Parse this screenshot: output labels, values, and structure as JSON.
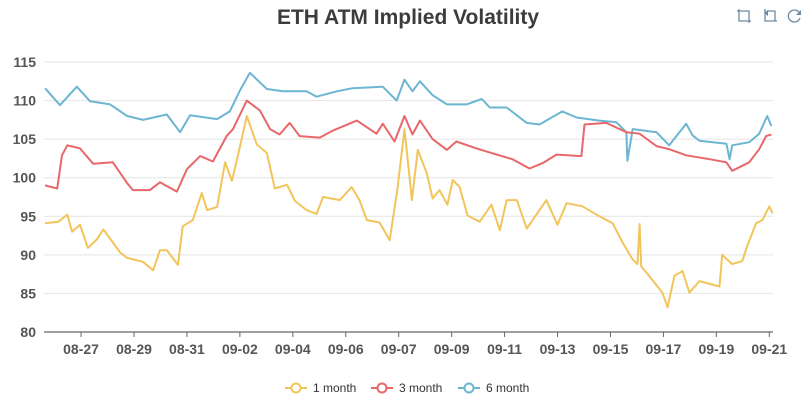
{
  "chart_data": {
    "type": "line",
    "title": "ETH ATM Implied Volatility",
    "xlabel": "",
    "ylabel": "",
    "x_categories": [
      "08-27",
      "08-29",
      "08-31",
      "09-02",
      "09-04",
      "09-06",
      "09-07",
      "09-09",
      "09-11",
      "09-13",
      "09-15",
      "09-17",
      "09-19",
      "09-21"
    ],
    "x_note": "x values are positions in tick units (0 = 08-27 tick, 13 = 09-21 tick)",
    "xlim": [
      -0.7,
      13.07
    ],
    "ylim": [
      80,
      115
    ],
    "yticks": [
      "80",
      "85",
      "90",
      "95",
      "100",
      "105",
      "110",
      "115"
    ],
    "grid": true,
    "legend_position": "bottom",
    "series": [
      {
        "name": "1 month",
        "color": "#f2c55c",
        "points": [
          [
            -0.68,
            94.1
          ],
          [
            -0.43,
            94.3
          ],
          [
            -0.26,
            95.2
          ],
          [
            -0.17,
            93.0
          ],
          [
            -0.02,
            93.9
          ],
          [
            0.13,
            90.9
          ],
          [
            0.3,
            92.0
          ],
          [
            0.42,
            93.3
          ],
          [
            0.74,
            90.3
          ],
          [
            0.87,
            89.6
          ],
          [
            1.17,
            89.1
          ],
          [
            1.36,
            88.0
          ],
          [
            1.49,
            90.6
          ],
          [
            1.62,
            90.6
          ],
          [
            1.83,
            88.7
          ],
          [
            1.92,
            93.7
          ],
          [
            2.11,
            94.5
          ],
          [
            2.28,
            98.0
          ],
          [
            2.38,
            95.8
          ],
          [
            2.57,
            96.2
          ],
          [
            2.72,
            102.0
          ],
          [
            2.85,
            99.6
          ],
          [
            2.96,
            102.8
          ],
          [
            3.13,
            108.0
          ],
          [
            3.32,
            104.3
          ],
          [
            3.51,
            103.2
          ],
          [
            3.66,
            98.6
          ],
          [
            3.89,
            99.1
          ],
          [
            4.04,
            97.0
          ],
          [
            4.26,
            95.8
          ],
          [
            4.45,
            95.3
          ],
          [
            4.57,
            97.5
          ],
          [
            4.89,
            97.1
          ],
          [
            5.11,
            98.8
          ],
          [
            5.26,
            97.1
          ],
          [
            5.4,
            94.5
          ],
          [
            5.64,
            94.2
          ],
          [
            5.83,
            91.9
          ],
          [
            5.98,
            98.7
          ],
          [
            6.11,
            106.3
          ],
          [
            6.25,
            97.1
          ],
          [
            6.36,
            103.6
          ],
          [
            6.53,
            100.6
          ],
          [
            6.64,
            97.3
          ],
          [
            6.77,
            98.4
          ],
          [
            6.92,
            96.5
          ],
          [
            7.02,
            99.7
          ],
          [
            7.15,
            98.8
          ],
          [
            7.3,
            95.1
          ],
          [
            7.53,
            94.3
          ],
          [
            7.75,
            96.5
          ],
          [
            7.91,
            93.2
          ],
          [
            8.04,
            97.1
          ],
          [
            8.23,
            97.1
          ],
          [
            8.42,
            93.4
          ],
          [
            8.79,
            97.1
          ],
          [
            9.0,
            93.9
          ],
          [
            9.17,
            96.7
          ],
          [
            9.47,
            96.3
          ],
          [
            9.79,
            95.0
          ],
          [
            10.04,
            94.1
          ],
          [
            10.23,
            91.6
          ],
          [
            10.42,
            89.4
          ],
          [
            10.51,
            88.8
          ],
          [
            10.55,
            94.0
          ],
          [
            10.58,
            88.5
          ],
          [
            10.68,
            87.7
          ],
          [
            10.98,
            85.1
          ],
          [
            11.08,
            83.2
          ],
          [
            11.21,
            87.3
          ],
          [
            11.36,
            87.9
          ],
          [
            11.49,
            85.1
          ],
          [
            11.68,
            86.6
          ],
          [
            12.06,
            85.9
          ],
          [
            12.11,
            90.0
          ],
          [
            12.3,
            88.8
          ],
          [
            12.49,
            89.2
          ],
          [
            12.58,
            91.1
          ],
          [
            12.75,
            94.1
          ],
          [
            12.87,
            94.5
          ],
          [
            13.0,
            96.3
          ],
          [
            13.06,
            95.4
          ]
        ]
      },
      {
        "name": "3 month",
        "color": "#e8676a",
        "points": [
          [
            -0.68,
            99.0
          ],
          [
            -0.45,
            98.6
          ],
          [
            -0.36,
            102.9
          ],
          [
            -0.26,
            104.2
          ],
          [
            -0.02,
            103.8
          ],
          [
            0.23,
            101.8
          ],
          [
            0.6,
            102.0
          ],
          [
            0.87,
            99.3
          ],
          [
            0.98,
            98.4
          ],
          [
            1.3,
            98.4
          ],
          [
            1.49,
            99.4
          ],
          [
            1.81,
            98.2
          ],
          [
            2.0,
            101.1
          ],
          [
            2.25,
            102.8
          ],
          [
            2.49,
            102.1
          ],
          [
            2.75,
            105.4
          ],
          [
            2.87,
            106.3
          ],
          [
            3.13,
            110.0
          ],
          [
            3.38,
            108.7
          ],
          [
            3.57,
            106.3
          ],
          [
            3.75,
            105.6
          ],
          [
            3.94,
            107.1
          ],
          [
            4.13,
            105.4
          ],
          [
            4.51,
            105.2
          ],
          [
            4.75,
            106.1
          ],
          [
            5.21,
            107.4
          ],
          [
            5.58,
            105.7
          ],
          [
            5.7,
            107.0
          ],
          [
            5.92,
            104.7
          ],
          [
            6.11,
            108.0
          ],
          [
            6.26,
            105.6
          ],
          [
            6.4,
            107.4
          ],
          [
            6.64,
            105.0
          ],
          [
            6.91,
            103.6
          ],
          [
            7.09,
            104.7
          ],
          [
            7.47,
            103.8
          ],
          [
            7.85,
            103.0
          ],
          [
            8.15,
            102.4
          ],
          [
            8.47,
            101.2
          ],
          [
            8.72,
            101.9
          ],
          [
            8.98,
            103.0
          ],
          [
            9.45,
            102.8
          ],
          [
            9.51,
            106.9
          ],
          [
            9.92,
            107.1
          ],
          [
            10.3,
            105.9
          ],
          [
            10.55,
            105.7
          ],
          [
            10.87,
            104.1
          ],
          [
            11.11,
            103.7
          ],
          [
            11.43,
            102.9
          ],
          [
            11.87,
            102.4
          ],
          [
            12.19,
            102.0
          ],
          [
            12.3,
            100.9
          ],
          [
            12.62,
            102.0
          ],
          [
            12.81,
            103.7
          ],
          [
            12.94,
            105.4
          ],
          [
            13.04,
            105.6
          ]
        ]
      },
      {
        "name": "6 month",
        "color": "#6cb6d2",
        "points": [
          [
            -0.68,
            111.6
          ],
          [
            -0.4,
            109.4
          ],
          [
            -0.08,
            111.8
          ],
          [
            0.17,
            109.9
          ],
          [
            0.55,
            109.5
          ],
          [
            0.87,
            108.0
          ],
          [
            1.17,
            107.5
          ],
          [
            1.62,
            108.2
          ],
          [
            1.87,
            105.9
          ],
          [
            2.06,
            108.1
          ],
          [
            2.57,
            107.6
          ],
          [
            2.81,
            108.6
          ],
          [
            3.0,
            111.3
          ],
          [
            3.19,
            113.6
          ],
          [
            3.51,
            111.5
          ],
          [
            3.81,
            111.2
          ],
          [
            4.26,
            111.2
          ],
          [
            4.45,
            110.5
          ],
          [
            4.83,
            111.2
          ],
          [
            5.13,
            111.6
          ],
          [
            5.7,
            111.8
          ],
          [
            5.96,
            110.0
          ],
          [
            6.11,
            112.7
          ],
          [
            6.26,
            111.2
          ],
          [
            6.4,
            112.5
          ],
          [
            6.64,
            110.7
          ],
          [
            6.91,
            109.5
          ],
          [
            7.28,
            109.5
          ],
          [
            7.57,
            110.2
          ],
          [
            7.72,
            109.1
          ],
          [
            8.04,
            109.1
          ],
          [
            8.42,
            107.1
          ],
          [
            8.66,
            106.9
          ],
          [
            9.09,
            108.6
          ],
          [
            9.36,
            107.8
          ],
          [
            9.79,
            107.4
          ],
          [
            10.11,
            107.2
          ],
          [
            10.3,
            105.9
          ],
          [
            10.32,
            102.2
          ],
          [
            10.42,
            106.3
          ],
          [
            10.87,
            105.9
          ],
          [
            11.11,
            104.2
          ],
          [
            11.43,
            107.0
          ],
          [
            11.55,
            105.5
          ],
          [
            11.68,
            104.8
          ],
          [
            12.19,
            104.4
          ],
          [
            12.25,
            102.4
          ],
          [
            12.3,
            104.2
          ],
          [
            12.62,
            104.6
          ],
          [
            12.81,
            105.7
          ],
          [
            12.96,
            108.0
          ],
          [
            13.04,
            106.7
          ]
        ]
      }
    ]
  },
  "toolbox": {
    "icons": [
      "data-zoom-icon",
      "zoom-reset-icon",
      "restore-icon"
    ]
  }
}
